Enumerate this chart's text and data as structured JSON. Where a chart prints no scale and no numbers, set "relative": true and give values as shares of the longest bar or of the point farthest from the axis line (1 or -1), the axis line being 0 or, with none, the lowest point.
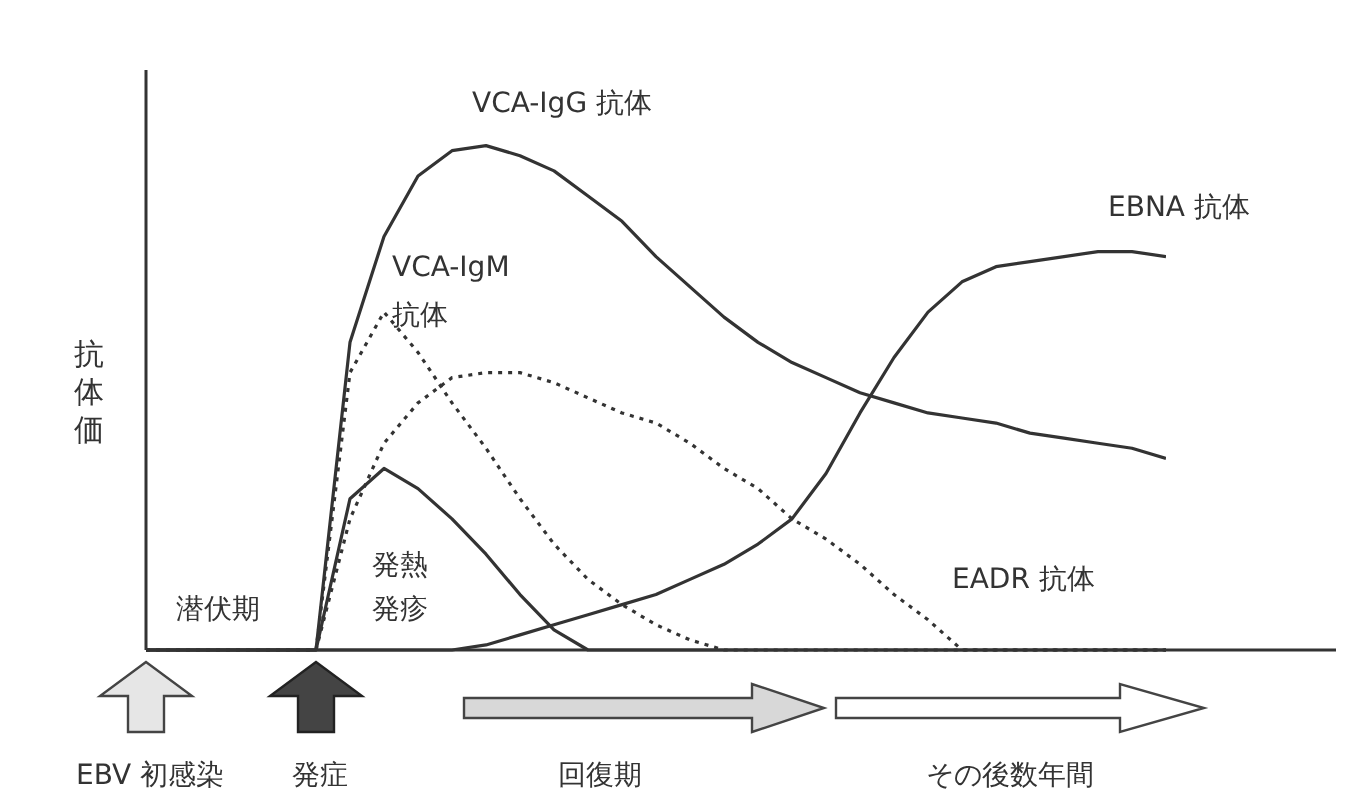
{
  "chart_data": {
    "type": "line",
    "relative": true,
    "ylabel": "抗体価",
    "marker": "none",
    "categories": [
      null,
      null,
      null,
      null,
      null,
      null,
      null,
      null,
      null,
      null,
      null,
      null,
      null,
      null,
      null,
      null,
      null,
      null,
      null,
      null,
      null,
      null,
      null,
      null,
      null,
      null,
      null,
      null,
      null,
      null,
      null
    ],
    "series": [
      {
        "name": "VCA-IgG 抗体",
        "color": "#333333",
        "line_style": "solid",
        "values": [
          0,
          0,
          0,
          0,
          0,
          0,
          0.61,
          0.82,
          0.94,
          0.99,
          1,
          0.98,
          0.95,
          0.9,
          0.85,
          0.78,
          0.72,
          0.66,
          0.61,
          0.57,
          0.54,
          0.51,
          0.49,
          0.47,
          0.46,
          0.45,
          0.43,
          0.42,
          0.41,
          0.4,
          0.38
        ]
      },
      {
        "name": "VCA-IgM 抗体",
        "color": "#333333",
        "line_style": "dotted",
        "values": [
          0,
          0,
          0,
          0,
          0,
          0,
          0.55,
          0.67,
          0.59,
          0.49,
          0.4,
          0.3,
          0.21,
          0.14,
          0.09,
          0.05,
          0.02,
          0,
          0,
          0,
          0,
          0,
          0,
          0,
          0,
          0,
          0,
          0,
          0,
          0,
          0
        ]
      },
      {
        "name": "EADR 抗体",
        "color": "#333333",
        "line_style": "dotted",
        "values": [
          0,
          0,
          0,
          0,
          0,
          0,
          0.26,
          0.41,
          0.49,
          0.54,
          0.55,
          0.55,
          0.53,
          0.5,
          0.47,
          0.45,
          0.41,
          0.36,
          0.32,
          0.26,
          0.22,
          0.17,
          0.11,
          0.06,
          0,
          0,
          0,
          0,
          0,
          0,
          0
        ]
      },
      {
        "color": "#333333",
        "line_style": "solid",
        "values": [
          0,
          0,
          0,
          0,
          0,
          0,
          0.3,
          0.36,
          0.32,
          0.26,
          0.19,
          0.11,
          0.04,
          0,
          0,
          0,
          0,
          0,
          0,
          0,
          0,
          0,
          0,
          0,
          0,
          0,
          0,
          0,
          0,
          0,
          0
        ]
      },
      {
        "name": "EBNA 抗体",
        "color": "#333333",
        "line_style": "solid",
        "values": [
          0,
          0,
          0,
          0,
          0,
          0,
          0,
          0,
          0,
          0,
          0.01,
          0.03,
          0.05,
          0.07,
          0.09,
          0.11,
          0.14,
          0.17,
          0.21,
          0.26,
          0.35,
          0.47,
          0.58,
          0.67,
          0.73,
          0.76,
          0.77,
          0.78,
          0.79,
          0.79,
          0.78
        ]
      }
    ],
    "annotations": [
      "潜伏期",
      "発熱発疹",
      "EBV 初感染",
      "発症",
      "回復期",
      "その後数年間"
    ]
  }
}
